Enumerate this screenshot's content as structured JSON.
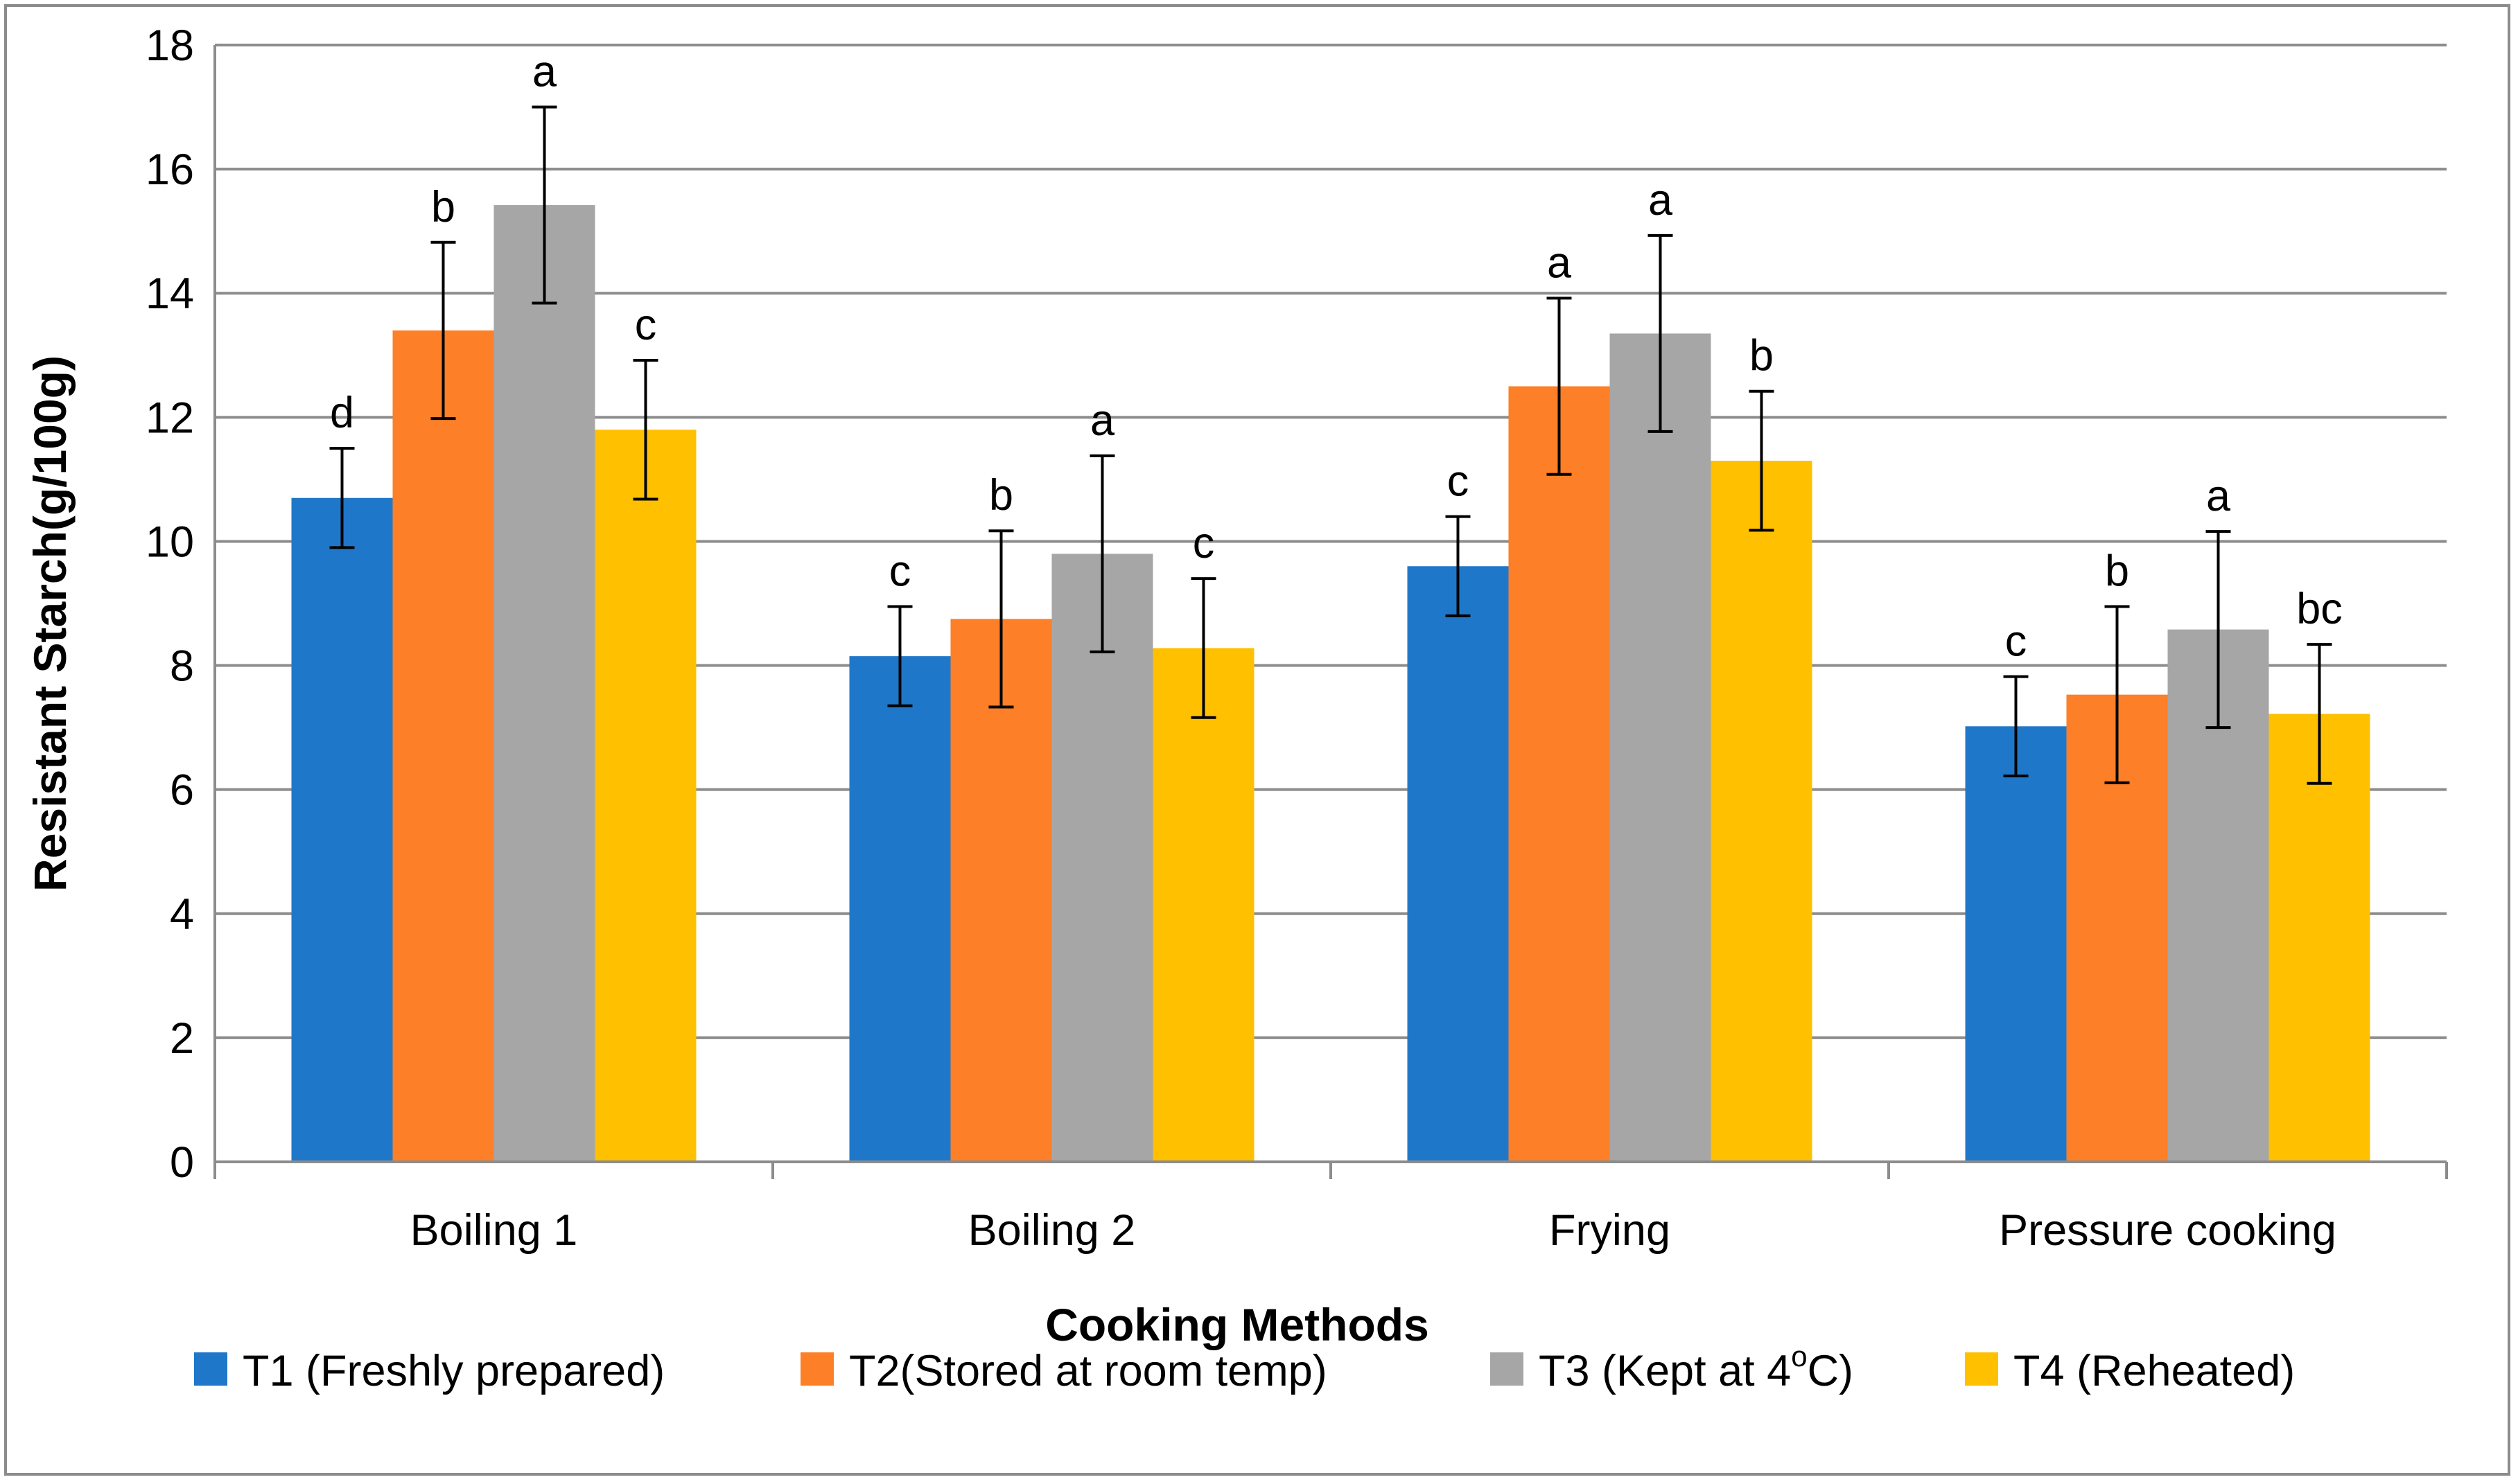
{
  "chart_data": {
    "type": "bar",
    "title": "",
    "xlabel": "Cooking Methods",
    "ylabel": "Resistant Starch(g/100g)",
    "ylim": [
      0,
      18
    ],
    "yticks": [
      0,
      2,
      4,
      6,
      8,
      10,
      12,
      14,
      16,
      18
    ],
    "grid": true,
    "legend_position": "bottom",
    "categories": [
      "Boiling 1",
      "Boiling 2",
      "Frying",
      "Pressure cooking"
    ],
    "series": [
      {
        "name": "T1 (Freshly prepared)",
        "color": "#1f77c9",
        "values": [
          10.7,
          8.15,
          9.6,
          7.02
        ],
        "errors": [
          0.8,
          0.8,
          0.8,
          0.8
        ],
        "labels": [
          "d",
          "c",
          "c",
          "c"
        ]
      },
      {
        "name": "T2(Stored at room temp)",
        "color": "#fd7f27",
        "values": [
          13.4,
          8.75,
          12.5,
          7.53
        ],
        "errors": [
          1.42,
          1.42,
          1.42,
          1.42
        ],
        "labels": [
          "b",
          "b",
          "a",
          "b"
        ]
      },
      {
        "name": "T3 (Kept at 4ºC)",
        "color": "#a6a6a6",
        "values": [
          15.42,
          9.8,
          13.35,
          8.58
        ],
        "errors": [
          1.58,
          1.58,
          1.58,
          1.58
        ],
        "labels": [
          "a",
          "a",
          "a",
          "a"
        ]
      },
      {
        "name": "T4 (Reheated)",
        "color": "#ffc000",
        "values": [
          11.8,
          8.28,
          11.3,
          7.22
        ],
        "errors": [
          1.12,
          1.12,
          1.12,
          1.12
        ],
        "labels": [
          "c",
          "c",
          "b",
          "bc"
        ]
      }
    ],
    "legend_label_parts": [
      {
        "main": "T1 (Freshly prepared)"
      },
      {
        "main": "T2(Stored at room temp)"
      },
      {
        "main": "T3 (Kept at 4",
        "sup": "o",
        "after": "C)"
      },
      {
        "main": "T4 (Reheated)"
      }
    ]
  }
}
